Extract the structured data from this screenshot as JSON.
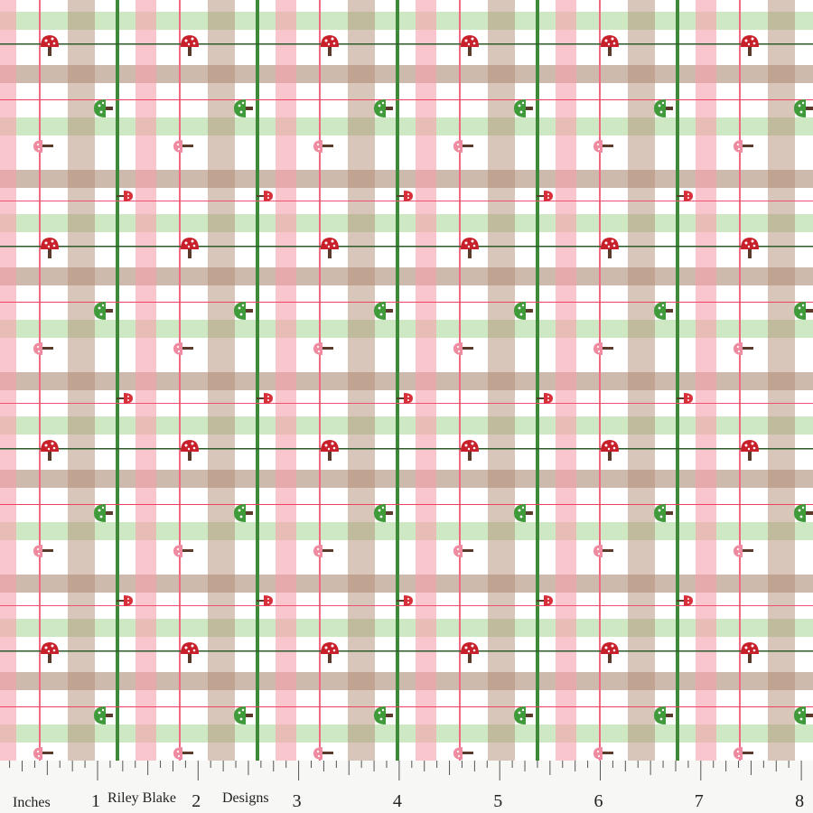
{
  "ruler": {
    "unit_label": "Inches",
    "numbers": [
      "1",
      "2",
      "3",
      "4",
      "5",
      "6",
      "7",
      "8"
    ],
    "brand": [
      "Riley Blake",
      "Designs"
    ]
  }
}
